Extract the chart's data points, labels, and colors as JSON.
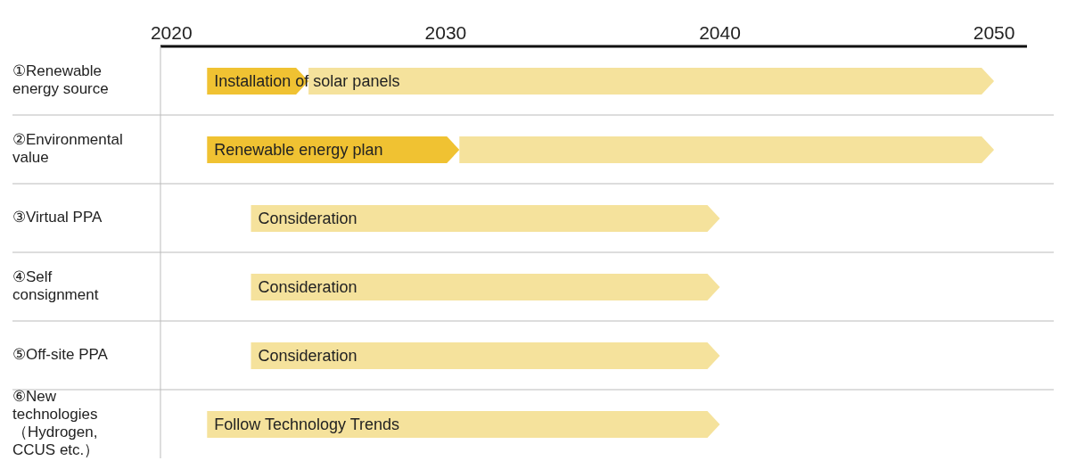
{
  "chart_data": {
    "type": "bar",
    "orientation": "horizontal",
    "categories": [
      "①Renewable energy source",
      "②Environmental value",
      "③Virtual PPA",
      "④Self consignment",
      "⑤Off-site PPA",
      "⑥New technologies （Hydrogen, CCUS etc.）"
    ],
    "series": [
      {
        "color": "#f0c232",
        "base": [
          2021.3,
          2021.3,
          null,
          null,
          null,
          null
        ],
        "values": [
          3.7,
          9.2,
          null,
          null,
          null,
          null
        ]
      },
      {
        "color": "#f5e29c",
        "base": [
          2025,
          2030.5,
          2022.9,
          2022.9,
          2022.9,
          2021.3
        ],
        "values": [
          25,
          19.5,
          17.1,
          17.1,
          17.1,
          18.7
        ]
      }
    ],
    "xlim": [
      2019.6,
      2051.2
    ],
    "xticks": [
      2020,
      2030,
      2040,
      2050
    ],
    "annotations": [
      "Installation of solar panels",
      "Renewable energy plan",
      "Consideration",
      "Consideration",
      "Consideration",
      "Follow Technology Trends"
    ]
  }
}
